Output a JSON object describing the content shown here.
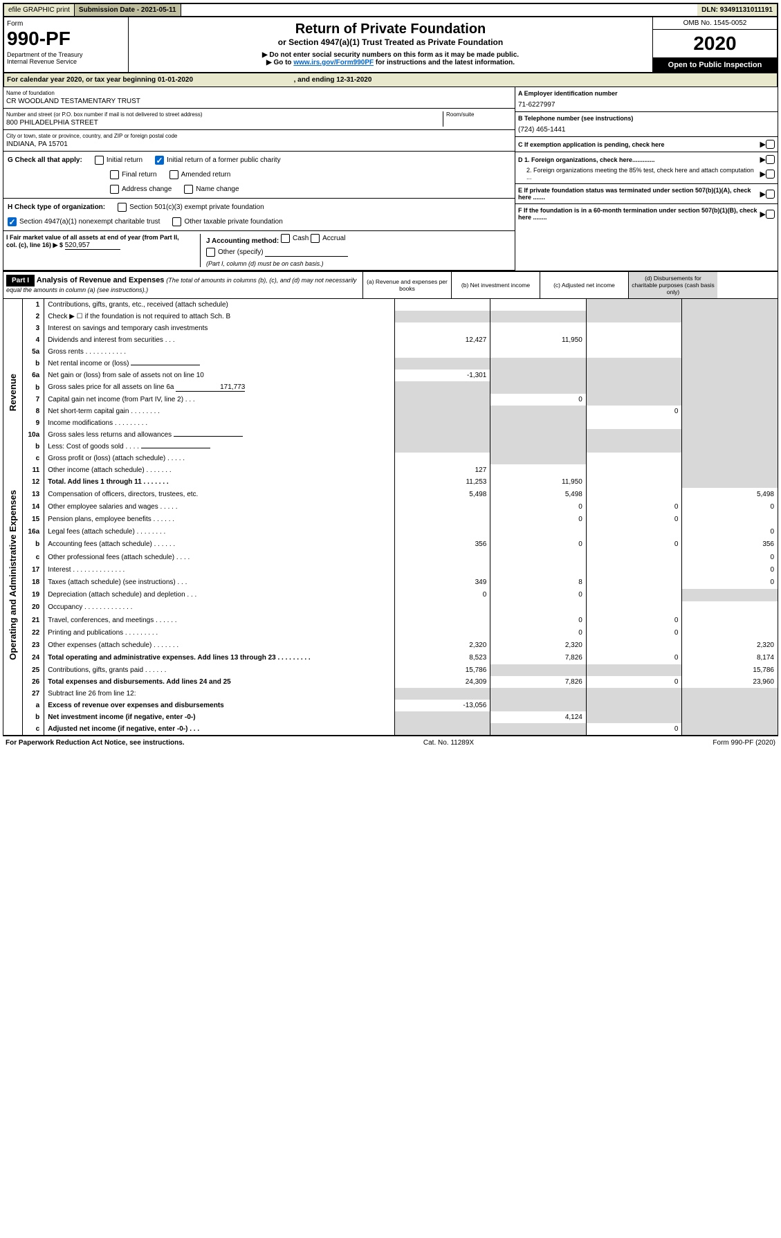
{
  "topbar": {
    "efile": "efile GRAPHIC print",
    "subdate_lbl": "Submission Date - 2021-05-11",
    "dln_lbl": "DLN: 93491131011191"
  },
  "header": {
    "form_lbl": "Form",
    "form_num": "990-PF",
    "dept": "Department of the Treasury",
    "irs": "Internal Revenue Service",
    "title": "Return of Private Foundation",
    "subtitle": "or Section 4947(a)(1) Trust Treated as Private Foundation",
    "warn1": "▶ Do not enter social security numbers on this form as it may be made public.",
    "warn2_pre": "▶ Go to ",
    "warn2_link": "www.irs.gov/Form990PF",
    "warn2_post": " for instructions and the latest information.",
    "omb": "OMB No. 1545-0052",
    "year": "2020",
    "inspection": "Open to Public Inspection"
  },
  "calbar": {
    "pre": "For calendar year 2020, or tax year beginning 01-01-2020",
    "mid": ", and ending 12-31-2020"
  },
  "info": {
    "name_lbl": "Name of foundation",
    "name_val": "CR WOODLAND TESTAMENTARY TRUST",
    "addr_lbl": "Number and street (or P.O. box number if mail is not delivered to street address)",
    "addr_val": "800 PHILADELPHIA STREET",
    "room_lbl": "Room/suite",
    "city_lbl": "City or town, state or province, country, and ZIP or foreign postal code",
    "city_val": "INDIANA, PA  15701",
    "ein_lbl": "A Employer identification number",
    "ein_val": "71-6227997",
    "tel_lbl": "B Telephone number (see instructions)",
    "tel_val": "(724) 465-1441",
    "c_lbl": "C If exemption application is pending, check here",
    "d1_lbl": "D 1. Foreign organizations, check here.............",
    "d2_lbl": "2. Foreign organizations meeting the 85% test, check here and attach computation ...",
    "e_lbl": "E  If private foundation status was terminated under section 507(b)(1)(A), check here .......",
    "f_lbl": "F  If the foundation is in a 60-month termination under section 507(b)(1)(B), check here ........"
  },
  "g": {
    "lbl": "G Check all that apply:",
    "opts": [
      "Initial return",
      "Initial return of a former public charity",
      "Final return",
      "Amended return",
      "Address change",
      "Name change"
    ]
  },
  "h": {
    "lbl": "H Check type of organization:",
    "o1": "Section 501(c)(3) exempt private foundation",
    "o2": "Section 4947(a)(1) nonexempt charitable trust",
    "o3": "Other taxable private foundation"
  },
  "i": {
    "lbl": "I Fair market value of all assets at end of year (from Part II, col. (c), line 16) ▶ $",
    "val": "520,957"
  },
  "j": {
    "lbl": "J Accounting method:",
    "o1": "Cash",
    "o2": "Accrual",
    "o3": "Other (specify)",
    "note": "(Part I, column (d) must be on cash basis.)"
  },
  "part1": {
    "hdr": "Part I",
    "title": "Analysis of Revenue and Expenses",
    "note": "(The total of amounts in columns (b), (c), and (d) may not necessarily equal the amounts in column (a) (see instructions).)",
    "cols": [
      "(a)    Revenue and expenses per books",
      "(b)  Net investment income",
      "(c)  Adjusted net income",
      "(d)  Disbursements for charitable purposes (cash basis only)"
    ]
  },
  "rev_lbl": "Revenue",
  "exp_lbl": "Operating and Administrative Expenses",
  "rows": [
    {
      "n": "1",
      "l": "Contributions, gifts, grants, etc., received (attach schedule)",
      "a": "",
      "b": "",
      "c": "s",
      "d": "s"
    },
    {
      "n": "2",
      "l": "Check ▶ ☐ if the foundation is not required to attach Sch. B",
      "a": "s",
      "b": "s",
      "c": "s",
      "d": "s",
      "bold_not": true
    },
    {
      "n": "3",
      "l": "Interest on savings and temporary cash investments",
      "a": "",
      "b": "",
      "c": "",
      "d": "s"
    },
    {
      "n": "4",
      "l": "Dividends and interest from securities    .   .   .",
      "a": "12,427",
      "b": "11,950",
      "c": "",
      "d": "s"
    },
    {
      "n": "5a",
      "l": "Gross rents      .   .   .   .   .   .   .   .   .   .   .",
      "a": "",
      "b": "",
      "c": "",
      "d": "s"
    },
    {
      "n": "b",
      "l": "Net rental income or (loss) ",
      "a": "s",
      "b": "s",
      "c": "s",
      "d": "s",
      "inline_blank": true
    },
    {
      "n": "6a",
      "l": "Net gain or (loss) from sale of assets not on line 10",
      "a": "-1,301",
      "b": "s",
      "c": "s",
      "d": "s"
    },
    {
      "n": "b",
      "l": "Gross sales price for all assets on line 6a ",
      "a": "s",
      "b": "s",
      "c": "s",
      "d": "s",
      "inline_val": "171,773"
    },
    {
      "n": "7",
      "l": "Capital gain net income (from Part IV, line 2)    .   .   .",
      "a": "s",
      "b": "0",
      "c": "s",
      "d": "s"
    },
    {
      "n": "8",
      "l": "Net short-term capital gain   .   .   .   .   .   .   .   .",
      "a": "s",
      "b": "s",
      "c": "0",
      "d": "s"
    },
    {
      "n": "9",
      "l": "Income modifications   .   .   .   .   .   .   .   .   .",
      "a": "s",
      "b": "s",
      "c": "",
      "d": "s"
    },
    {
      "n": "10a",
      "l": "Gross sales less returns and allowances ",
      "a": "s",
      "b": "s",
      "c": "s",
      "d": "s",
      "inline_blank": true
    },
    {
      "n": "b",
      "l": "Less: Cost of goods sold      .   .   .   . ",
      "a": "s",
      "b": "s",
      "c": "s",
      "d": "s",
      "inline_blank": true
    },
    {
      "n": "c",
      "l": "Gross profit or (loss) (attach schedule)    .   .   .   .   .",
      "a": "",
      "b": "s",
      "c": "",
      "d": "s"
    },
    {
      "n": "11",
      "l": "Other income (attach schedule)    .   .   .   .   .   .   .",
      "a": "127",
      "b": "",
      "c": "",
      "d": "s"
    },
    {
      "n": "12",
      "l": "Total. Add lines 1 through 11    .   .   .   .   .   .   .",
      "a": "11,253",
      "b": "11,950",
      "c": "",
      "d": "s",
      "bold": true
    },
    {
      "n": "13",
      "l": "Compensation of officers, directors, trustees, etc.",
      "a": "5,498",
      "b": "5,498",
      "c": "",
      "d": "5,498"
    },
    {
      "n": "14",
      "l": "Other employee salaries and wages    .   .   .   .   .",
      "a": "",
      "b": "0",
      "c": "0",
      "d": "0"
    },
    {
      "n": "15",
      "l": "Pension plans, employee benefits   .   .   .   .   .   .",
      "a": "",
      "b": "0",
      "c": "0",
      "d": ""
    },
    {
      "n": "16a",
      "l": "Legal fees (attach schedule)   .   .   .   .   .   .   .   .",
      "a": "",
      "b": "",
      "c": "",
      "d": "0"
    },
    {
      "n": "b",
      "l": "Accounting fees (attach schedule)   .   .   .   .   .   .",
      "a": "356",
      "b": "0",
      "c": "0",
      "d": "356"
    },
    {
      "n": "c",
      "l": "Other professional fees (attach schedule)    .   .   .   .",
      "a": "",
      "b": "",
      "c": "",
      "d": "0"
    },
    {
      "n": "17",
      "l": "Interest   .   .   .   .   .   .   .   .   .   .   .   .   .   .",
      "a": "",
      "b": "",
      "c": "",
      "d": "0"
    },
    {
      "n": "18",
      "l": "Taxes (attach schedule) (see instructions)     .   .   .",
      "a": "349",
      "b": "8",
      "c": "",
      "d": "0"
    },
    {
      "n": "19",
      "l": "Depreciation (attach schedule) and depletion    .   .   .",
      "a": "0",
      "b": "0",
      "c": "",
      "d": "s"
    },
    {
      "n": "20",
      "l": "Occupancy   .   .   .   .   .   .   .   .   .   .   .   .   .",
      "a": "",
      "b": "",
      "c": "",
      "d": ""
    },
    {
      "n": "21",
      "l": "Travel, conferences, and meetings   .   .   .   .   .   .",
      "a": "",
      "b": "0",
      "c": "0",
      "d": ""
    },
    {
      "n": "22",
      "l": "Printing and publications   .   .   .   .   .   .   .   .   .",
      "a": "",
      "b": "0",
      "c": "0",
      "d": ""
    },
    {
      "n": "23",
      "l": "Other expenses (attach schedule)   .   .   .   .   .   .   .",
      "a": "2,320",
      "b": "2,320",
      "c": "",
      "d": "2,320"
    },
    {
      "n": "24",
      "l": "Total operating and administrative expenses. Add lines 13 through 23   .   .   .   .   .   .   .   .   .",
      "a": "8,523",
      "b": "7,826",
      "c": "0",
      "d": "8,174",
      "bold": true
    },
    {
      "n": "25",
      "l": "Contributions, gifts, grants paid       .   .   .   .   .   .",
      "a": "15,786",
      "b": "s",
      "c": "s",
      "d": "15,786"
    },
    {
      "n": "26",
      "l": "Total expenses and disbursements. Add lines 24 and 25",
      "a": "24,309",
      "b": "7,826",
      "c": "0",
      "d": "23,960",
      "bold": true
    },
    {
      "n": "27",
      "l": "Subtract line 26 from line 12:",
      "a": "s",
      "b": "s",
      "c": "s",
      "d": "s"
    },
    {
      "n": "a",
      "l": "Excess of revenue over expenses and disbursements",
      "a": "-13,056",
      "b": "s",
      "c": "s",
      "d": "s",
      "bold": true
    },
    {
      "n": "b",
      "l": "Net investment income (if negative, enter -0-)",
      "a": "s",
      "b": "4,124",
      "c": "s",
      "d": "s",
      "bold": true
    },
    {
      "n": "c",
      "l": "Adjusted net income (if negative, enter -0-)   .   .   .",
      "a": "s",
      "b": "s",
      "c": "0",
      "d": "s",
      "bold": true
    }
  ],
  "footer": {
    "left": "For Paperwork Reduction Act Notice, see instructions.",
    "mid": "Cat. No. 11289X",
    "right": "Form 990-PF (2020)"
  },
  "colors": {
    "topbar_bg": "#e8e8cc",
    "shade": "#d8d8d8",
    "link": "#0066cc"
  }
}
